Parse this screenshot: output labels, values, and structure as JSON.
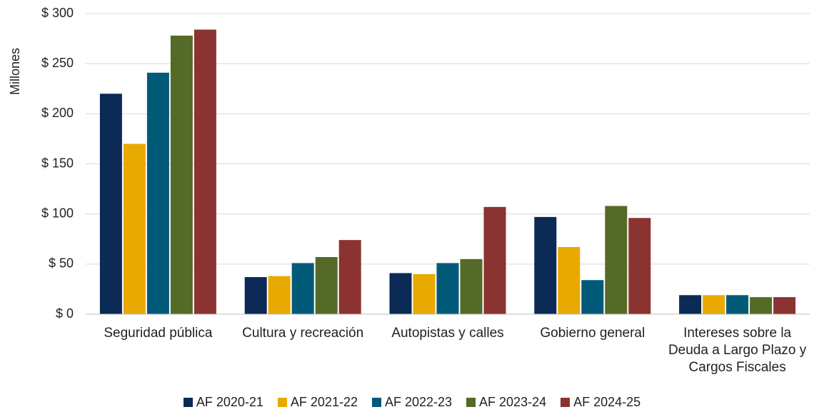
{
  "chart_data": {
    "type": "bar",
    "y_label": "Millones",
    "categories": [
      "Seguridad pública",
      "Cultura y recreación",
      "Autopistas y calles",
      "Gobierno general",
      "Intereses sobre la Deuda a Largo Plazo y Cargos Fiscales"
    ],
    "series": [
      {
        "name": "AF 2020-21",
        "color": "#0b2a55",
        "values": [
          220,
          37,
          41,
          97,
          19
        ]
      },
      {
        "name": "AF 2021-22",
        "color": "#e8a900",
        "values": [
          170,
          38,
          40,
          67,
          19
        ]
      },
      {
        "name": "AF 2022-23",
        "color": "#005a78",
        "values": [
          241,
          51,
          51,
          34,
          19
        ]
      },
      {
        "name": "AF 2023-24",
        "color": "#566a28",
        "values": [
          278,
          57,
          55,
          108,
          17
        ]
      },
      {
        "name": "AF 2024-25",
        "color": "#8a3330",
        "values": [
          284,
          74,
          107,
          96,
          17
        ]
      }
    ],
    "ylim": [
      0,
      300
    ],
    "yticks": [
      {
        "value": 0,
        "label": "$ 0"
      },
      {
        "value": 50,
        "label": "$ 50"
      },
      {
        "value": 100,
        "label": "$ 100"
      },
      {
        "value": 150,
        "label": "$ 150"
      },
      {
        "value": 200,
        "label": "$ 200"
      },
      {
        "value": 250,
        "label": "$ 250"
      },
      {
        "value": 300,
        "label": "$ 300"
      }
    ],
    "grid": true
  }
}
